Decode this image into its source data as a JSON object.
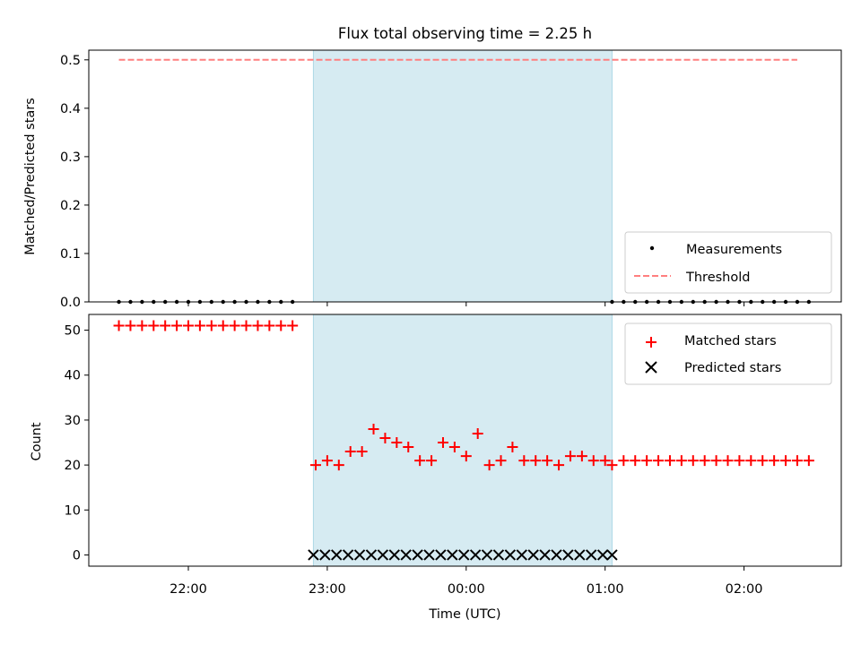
{
  "chart_data": [
    {
      "type": "scatter",
      "title": "Flux total observing time = 2.25 h",
      "ylabel": "Matched/Predicted stars",
      "xlabel": "",
      "ylim": [
        0,
        0.52
      ],
      "yticks": [
        "0.0",
        "0.1",
        "0.2",
        "0.3",
        "0.4",
        "0.5"
      ],
      "shaded_interval": [
        "22:54",
        "01:03"
      ],
      "shade_color": "#add8e6",
      "legend_position": "lower right",
      "series": [
        {
          "name": "Measurements",
          "marker": "dot",
          "color": "#000000",
          "x": [
            "21:30",
            "21:35",
            "21:40",
            "21:45",
            "21:50",
            "21:55",
            "22:00",
            "22:05",
            "22:10",
            "22:15",
            "22:20",
            "22:25",
            "22:30",
            "22:35",
            "22:40",
            "22:45",
            "01:03",
            "01:08",
            "01:13",
            "01:18",
            "01:23",
            "01:28",
            "01:33",
            "01:38",
            "01:43",
            "01:48",
            "01:53",
            "01:58",
            "02:03",
            "02:08",
            "02:13",
            "02:18",
            "02:23",
            "02:28"
          ],
          "y": [
            0,
            0,
            0,
            0,
            0,
            0,
            0,
            0,
            0,
            0,
            0,
            0,
            0,
            0,
            0,
            0,
            0,
            0,
            0,
            0,
            0,
            0,
            0,
            0,
            0,
            0,
            0,
            0,
            0,
            0,
            0,
            0,
            0,
            0
          ]
        },
        {
          "name": "Threshold",
          "marker": "dashed-line",
          "color": "#ff7f7f",
          "x": [
            "21:30",
            "02:23"
          ],
          "y": [
            0.5,
            0.5
          ]
        }
      ]
    },
    {
      "type": "scatter",
      "title": "",
      "ylabel": "Count",
      "xlabel": "Time (UTC)",
      "ylim": [
        -2.5,
        53.5
      ],
      "yticks": [
        "0",
        "10",
        "20",
        "30",
        "40",
        "50"
      ],
      "xticks": [
        "22:00",
        "23:00",
        "00:00",
        "01:00",
        "02:00"
      ],
      "shaded_interval": [
        "22:54",
        "01:03"
      ],
      "shade_color": "#add8e6",
      "legend_position": "upper right",
      "series": [
        {
          "name": "Matched stars",
          "marker": "plus",
          "color": "#ff0000",
          "x": [
            "21:30",
            "21:35",
            "21:40",
            "21:45",
            "21:50",
            "21:55",
            "22:00",
            "22:05",
            "22:10",
            "22:15",
            "22:20",
            "22:25",
            "22:30",
            "22:35",
            "22:40",
            "22:45",
            "22:55",
            "23:00",
            "23:05",
            "23:10",
            "23:15",
            "23:20",
            "23:25",
            "23:30",
            "23:35",
            "23:40",
            "23:45",
            "23:50",
            "23:55",
            "00:00",
            "00:05",
            "00:10",
            "00:15",
            "00:20",
            "00:25",
            "00:30",
            "00:35",
            "00:40",
            "00:45",
            "00:50",
            "00:55",
            "01:00",
            "01:03",
            "01:08",
            "01:13",
            "01:18",
            "01:23",
            "01:28",
            "01:33",
            "01:38",
            "01:43",
            "01:48",
            "01:53",
            "01:58",
            "02:03",
            "02:08",
            "02:13",
            "02:18",
            "02:23",
            "02:28"
          ],
          "y": [
            51,
            51,
            51,
            51,
            51,
            51,
            51,
            51,
            51,
            51,
            51,
            51,
            51,
            51,
            51,
            51,
            20,
            21,
            20,
            23,
            23,
            28,
            26,
            25,
            24,
            21,
            21,
            25,
            24,
            22,
            27,
            20,
            21,
            24,
            21,
            21,
            21,
            20,
            22,
            22,
            21,
            21,
            20,
            21,
            21,
            21,
            21,
            21,
            21,
            21,
            21,
            21,
            21,
            21,
            21,
            21,
            21,
            21,
            21,
            21
          ]
        },
        {
          "name": "Predicted stars",
          "marker": "x",
          "color": "#000000",
          "x": [
            "22:54",
            "22:59",
            "23:04",
            "23:09",
            "23:14",
            "23:19",
            "23:24",
            "23:29",
            "23:34",
            "23:39",
            "23:44",
            "23:49",
            "23:54",
            "23:59",
            "00:04",
            "00:09",
            "00:14",
            "00:19",
            "00:24",
            "00:29",
            "00:34",
            "00:39",
            "00:44",
            "00:49",
            "00:54",
            "00:59",
            "01:03"
          ],
          "y": [
            0,
            0,
            0,
            0,
            0,
            0,
            0,
            0,
            0,
            0,
            0,
            0,
            0,
            0,
            0,
            0,
            0,
            0,
            0,
            0,
            0,
            0,
            0,
            0,
            0,
            0,
            0
          ]
        }
      ]
    }
  ]
}
